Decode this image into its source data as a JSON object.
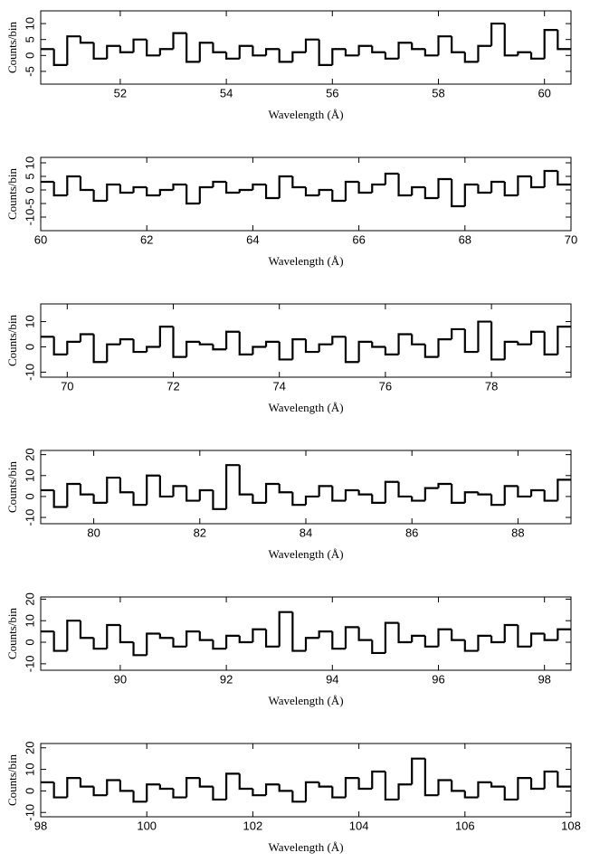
{
  "chart_data": [
    {
      "type": "histogram",
      "x_label": "Wavelength (Å)",
      "y_label": "Counts/bin",
      "color": "#000000",
      "xlim": [
        50.5,
        60.5
      ],
      "xticks": [
        52,
        54,
        56,
        58,
        60
      ],
      "ylim": [
        -9,
        14
      ],
      "yticks": [
        -5,
        0,
        5,
        10
      ],
      "bins": [
        50.5,
        50.75,
        51,
        51.25,
        51.5,
        51.75,
        52,
        52.25,
        52.5,
        52.75,
        53,
        53.25,
        53.5,
        53.75,
        54,
        54.25,
        54.5,
        54.75,
        55,
        55.25,
        55.5,
        55.75,
        56,
        56.25,
        56.5,
        56.75,
        57,
        57.25,
        57.5,
        57.75,
        58,
        58.25,
        58.5,
        58.75,
        59,
        59.25,
        59.5,
        59.75,
        60,
        60.25,
        60.5
      ],
      "values": [
        2,
        -3,
        6,
        4,
        -1,
        3,
        1,
        5,
        0,
        2,
        7,
        -2,
        4,
        1,
        -1,
        3,
        0,
        2,
        -2,
        1,
        5,
        -3,
        2,
        0,
        3,
        1,
        -1,
        4,
        2,
        0,
        6,
        1,
        -2,
        3,
        10,
        0,
        1,
        -1,
        8,
        2
      ]
    },
    {
      "type": "histogram",
      "x_label": "Wavelength (Å)",
      "y_label": "Counts/bin",
      "color": "#000000",
      "xlim": [
        60,
        70
      ],
      "xticks": [
        60,
        62,
        64,
        66,
        68,
        70
      ],
      "ylim": [
        -15,
        12
      ],
      "yticks": [
        -10,
        -5,
        0,
        5,
        10
      ],
      "bins": [
        60,
        60.25,
        60.5,
        60.75,
        61,
        61.25,
        61.5,
        61.75,
        62,
        62.25,
        62.5,
        62.75,
        63,
        63.25,
        63.5,
        63.75,
        64,
        64.25,
        64.5,
        64.75,
        65,
        65.25,
        65.5,
        65.75,
        66,
        66.25,
        66.5,
        66.75,
        67,
        67.25,
        67.5,
        67.75,
        68,
        68.25,
        68.5,
        68.75,
        69,
        69.25,
        69.5,
        69.75,
        70
      ],
      "values": [
        3,
        -2,
        5,
        0,
        -4,
        2,
        -1,
        1,
        -2,
        0,
        2,
        -5,
        1,
        3,
        -1,
        0,
        2,
        -3,
        5,
        1,
        -2,
        0,
        -4,
        3,
        -1,
        2,
        6,
        -2,
        1,
        -3,
        4,
        -6,
        2,
        -1,
        3,
        -2,
        5,
        1,
        7,
        2
      ]
    },
    {
      "type": "histogram",
      "x_label": "Wavelength (Å)",
      "y_label": "Counts/bin",
      "color": "#000000",
      "xlim": [
        69.5,
        79.5
      ],
      "xticks": [
        70,
        72,
        74,
        76,
        78
      ],
      "ylim": [
        -12,
        17
      ],
      "yticks": [
        -10,
        0,
        10
      ],
      "bins": [
        69.5,
        69.75,
        70,
        70.25,
        70.5,
        70.75,
        71,
        71.25,
        71.5,
        71.75,
        72,
        72.25,
        72.5,
        72.75,
        73,
        73.25,
        73.5,
        73.75,
        74,
        74.25,
        74.5,
        74.75,
        75,
        75.25,
        75.5,
        75.75,
        76,
        76.25,
        76.5,
        76.75,
        77,
        77.25,
        77.5,
        77.75,
        78,
        78.25,
        78.5,
        78.75,
        79,
        79.25,
        79.5
      ],
      "values": [
        4,
        -3,
        2,
        5,
        -6,
        1,
        3,
        -2,
        0,
        8,
        -4,
        2,
        1,
        -1,
        6,
        -3,
        0,
        2,
        -5,
        3,
        -2,
        1,
        4,
        -6,
        2,
        0,
        -3,
        5,
        1,
        -4,
        3,
        7,
        -2,
        10,
        -5,
        2,
        1,
        6,
        -3,
        8
      ]
    },
    {
      "type": "histogram",
      "x_label": "Wavelength (Å)",
      "y_label": "Counts/bin",
      "color": "#000000",
      "xlim": [
        79,
        89
      ],
      "xticks": [
        80,
        82,
        84,
        86,
        88
      ],
      "ylim": [
        -13,
        22
      ],
      "yticks": [
        -10,
        0,
        10,
        20
      ],
      "bins": [
        79,
        79.25,
        79.5,
        79.75,
        80,
        80.25,
        80.5,
        80.75,
        81,
        81.25,
        81.5,
        81.75,
        82,
        82.25,
        82.5,
        82.75,
        83,
        83.25,
        83.5,
        83.75,
        84,
        84.25,
        84.5,
        84.75,
        85,
        85.25,
        85.5,
        85.75,
        86,
        86.25,
        86.5,
        86.75,
        87,
        87.25,
        87.5,
        87.75,
        88,
        88.25,
        88.5,
        88.75,
        89
      ],
      "values": [
        3,
        -5,
        6,
        1,
        -3,
        9,
        2,
        -4,
        10,
        0,
        5,
        -2,
        3,
        -6,
        15,
        1,
        -3,
        6,
        2,
        -4,
        0,
        5,
        -2,
        3,
        1,
        -3,
        7,
        0,
        -2,
        4,
        6,
        -3,
        2,
        1,
        -4,
        5,
        0,
        3,
        -2,
        8
      ]
    },
    {
      "type": "histogram",
      "x_label": "Wavelength (Å)",
      "y_label": "Counts/bin",
      "color": "#000000",
      "xlim": [
        88.5,
        98.5
      ],
      "xticks": [
        90,
        92,
        94,
        96,
        98
      ],
      "ylim": [
        -13,
        21
      ],
      "yticks": [
        -10,
        0,
        10,
        20
      ],
      "bins": [
        88.5,
        88.75,
        89,
        89.25,
        89.5,
        89.75,
        90,
        90.25,
        90.5,
        90.75,
        91,
        91.25,
        91.5,
        91.75,
        92,
        92.25,
        92.5,
        92.75,
        93,
        93.25,
        93.5,
        93.75,
        94,
        94.25,
        94.5,
        94.75,
        95,
        95.25,
        95.5,
        95.75,
        96,
        96.25,
        96.5,
        96.75,
        97,
        97.25,
        97.5,
        97.75,
        98,
        98.25,
        98.5
      ],
      "values": [
        5,
        -4,
        10,
        2,
        -3,
        8,
        0,
        -6,
        4,
        2,
        -2,
        5,
        1,
        -3,
        3,
        0,
        6,
        -2,
        14,
        -4,
        2,
        5,
        -3,
        7,
        1,
        -5,
        9,
        0,
        3,
        -2,
        6,
        1,
        -4,
        3,
        0,
        8,
        -2,
        4,
        1,
        6
      ]
    },
    {
      "type": "histogram",
      "x_label": "Wavelength (Å)",
      "y_label": "Counts/bin",
      "color": "#000000",
      "xlim": [
        98,
        108
      ],
      "xticks": [
        98,
        100,
        102,
        104,
        106,
        108
      ],
      "ylim": [
        -12,
        22
      ],
      "yticks": [
        -10,
        0,
        10,
        20
      ],
      "bins": [
        98,
        98.25,
        98.5,
        98.75,
        99,
        99.25,
        99.5,
        99.75,
        100,
        100.25,
        100.5,
        100.75,
        101,
        101.25,
        101.5,
        101.75,
        102,
        102.25,
        102.5,
        102.75,
        103,
        103.25,
        103.5,
        103.75,
        104,
        104.25,
        104.5,
        104.75,
        105,
        105.25,
        105.5,
        105.75,
        106,
        106.25,
        106.5,
        106.75,
        107,
        107.25,
        107.5,
        107.75,
        108
      ],
      "values": [
        4,
        -3,
        6,
        2,
        -2,
        5,
        0,
        -5,
        3,
        1,
        -3,
        6,
        2,
        -4,
        8,
        1,
        -2,
        3,
        0,
        -5,
        4,
        2,
        -3,
        6,
        1,
        9,
        -4,
        3,
        15,
        -2,
        5,
        0,
        -3,
        4,
        2,
        -4,
        6,
        1,
        9,
        2
      ]
    }
  ]
}
